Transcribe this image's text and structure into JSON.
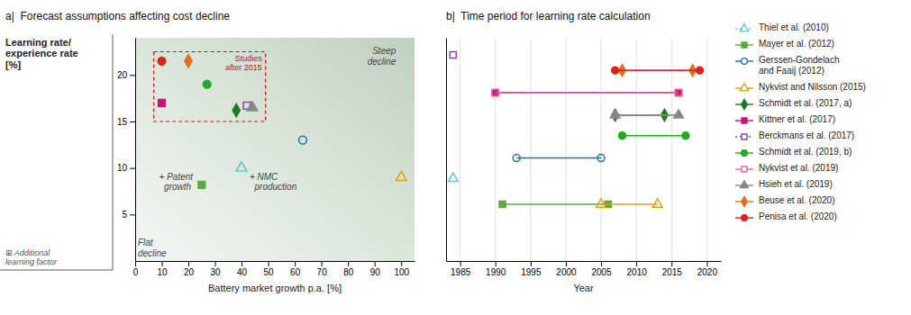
{
  "chart_data": [
    {
      "type": "scatter",
      "title": "a|  Forecast assumptions affecting cost decline",
      "x_label": "Battery market growth p.a. [%]",
      "y_label": "Learning rate/\nexperience rate\n[%]",
      "xlim": [
        0,
        105
      ],
      "ylim": [
        0,
        24
      ],
      "xticks": [
        0,
        10,
        20,
        30,
        40,
        50,
        60,
        70,
        80,
        90,
        100
      ],
      "yticks": [
        5,
        10,
        15,
        20
      ],
      "grid": false,
      "series": [
        {
          "color": "#5bc8c8",
          "marker": "triangle-open",
          "x": [
            40
          ],
          "values": [
            10
          ]
        },
        {
          "color": "#5aaa3c",
          "marker": "square",
          "x": [
            25
          ],
          "values": [
            8.2
          ]
        },
        {
          "color": "#1a6fbe",
          "marker": "circle-open",
          "x": [
            63
          ],
          "values": [
            13
          ]
        },
        {
          "color": "#e0a010",
          "marker": "triangle-open",
          "x": [
            100
          ],
          "values": [
            9
          ]
        },
        {
          "color": "#1e7a1e",
          "marker": "diamond",
          "x": [
            38
          ],
          "values": [
            16.2
          ]
        },
        {
          "color": "#cc1177",
          "marker": "square",
          "x": [
            10
          ],
          "values": [
            17
          ]
        },
        {
          "color": "#8844aa",
          "marker": "square-open",
          "x": [
            42
          ],
          "values": [
            16.7
          ]
        },
        {
          "color": "#22aa22",
          "marker": "circle",
          "x": [
            27
          ],
          "values": [
            19
          ]
        },
        {
          "color": "#888888",
          "marker": "triangle",
          "x": [
            44
          ],
          "values": [
            16.5
          ]
        },
        {
          "color": "#e07020",
          "marker": "diamond",
          "x": [
            20
          ],
          "values": [
            21.5
          ]
        },
        {
          "color": "#dd2222",
          "marker": "circle",
          "x": [
            10
          ],
          "values": [
            21.5
          ]
        }
      ],
      "regions": [
        {
          "label": "Studies\nafter 2015",
          "color": "#cc1111",
          "x0": 7,
          "y0": 15.0,
          "width": 42,
          "height": 7.5
        }
      ],
      "annotations": [
        {
          "text": "+ Patent\n  growth",
          "x": 9,
          "y": 8.5
        },
        {
          "text": "+ NMC\n  production",
          "x": 43,
          "y": 8.5
        },
        {
          "text": "Steep\ndecline",
          "x": 98,
          "y": 23.0
        },
        {
          "text": "Flat\ndecline",
          "x": 1,
          "y": 0.5
        },
        {
          "text": "⊞ Additional\nlearning factor"
        }
      ]
    },
    {
      "type": "range",
      "title": "b|  Time period for learning rate calculation",
      "x_label": "Year",
      "xlim": [
        1983,
        2022
      ],
      "ylim": [
        0,
        13
      ],
      "xticks": [
        1985,
        1990,
        1995,
        2000,
        2005,
        2010,
        2015,
        2020
      ],
      "grid": "x",
      "tick_labels": "x",
      "legend": "right",
      "series": [
        {
          "name": "Thiel et al. (2010)",
          "color": "#5bc8c8",
          "marker": "triangle-open",
          "line_style": "dotted",
          "start": [
            1984
          ],
          "end": [
            1984
          ],
          "values": [
            4.8
          ]
        },
        {
          "name": "Mayer et al. (2012)",
          "color": "#5aaa3c",
          "marker": "square",
          "line_style": "solid",
          "start": [
            1991
          ],
          "end": [
            2006
          ],
          "values": [
            3.3
          ]
        },
        {
          "name": "Gerssen-Gondelach\nand Faaij (2012)",
          "color": "#1a6fbe",
          "marker": "circle-open",
          "line_style": "solid",
          "start": [
            1993
          ],
          "end": [
            2005
          ],
          "values": [
            6.0
          ]
        },
        {
          "name": "Nykvist and Nilsson (2015)",
          "color": "#e0a010",
          "marker": "triangle-open",
          "line_style": "solid",
          "start": [
            2005
          ],
          "end": [
            2013
          ],
          "values": [
            3.3
          ]
        },
        {
          "name": "Schmidt et al. (2017, a)",
          "color": "#1e7a1e",
          "marker": "diamond",
          "line_style": "solid",
          "start": [
            2007
          ],
          "end": [
            2014
          ],
          "values": [
            8.5
          ]
        },
        {
          "name": "Kittner et al. (2017)",
          "color": "#cc1177",
          "marker": "square",
          "line_style": "solid",
          "start": [
            1990
          ],
          "end": [
            2016
          ],
          "values": [
            9.8
          ]
        },
        {
          "name": "Berckmans et al. (2017)",
          "color": "#8844aa",
          "marker": "square-open",
          "line_style": "dotted",
          "start": [
            1984
          ],
          "end": [
            1984
          ],
          "values": [
            12.0
          ]
        },
        {
          "name": "Schmidt et al. (2019, b)",
          "color": "#22aa22",
          "marker": "circle",
          "line_style": "solid",
          "start": [
            2008
          ],
          "end": [
            2017
          ],
          "values": [
            7.3
          ]
        },
        {
          "name": "Nykvist et al. (2019)",
          "color": "#e860a0",
          "marker": "square-open",
          "line_style": "solid",
          "start": [
            1990
          ],
          "end": [
            2016
          ],
          "values": [
            9.8
          ]
        },
        {
          "name": "Hsieh et al. (2019)",
          "color": "#888888",
          "marker": "triangle",
          "line_style": "solid",
          "start": [
            2007
          ],
          "end": [
            2016
          ],
          "values": [
            8.5
          ]
        },
        {
          "name": "Beuse et al. (2020)",
          "color": "#e07020",
          "marker": "diamond",
          "line_style": "solid",
          "start": [
            2008
          ],
          "end": [
            2018
          ],
          "values": [
            11.1
          ]
        },
        {
          "name": "Penisa et al. (2020)",
          "color": "#dd2222",
          "marker": "circle",
          "line_style": "solid",
          "start": [
            2007
          ],
          "end": [
            2019
          ],
          "values": [
            11.1
          ]
        }
      ]
    }
  ]
}
